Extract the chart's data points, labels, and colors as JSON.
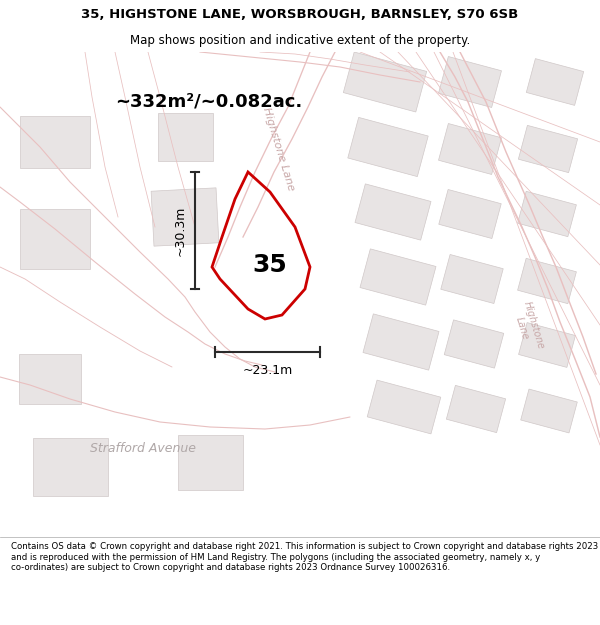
{
  "title_line1": "35, HIGHSTONE LANE, WORSBROUGH, BARNSLEY, S70 6SB",
  "title_line2": "Map shows position and indicative extent of the property.",
  "area_text": "~332m²/~0.082ac.",
  "width_label": "~23.1m",
  "height_label": "~30.3m",
  "number_label": "35",
  "footer_text": "Contains OS data © Crown copyright and database right 2021. This information is subject to Crown copyright and database rights 2023 and is reproduced with the permission of HM Land Registry. The polygons (including the associated geometry, namely x, y co-ordinates) are subject to Crown copyright and database rights 2023 Ordnance Survey 100026316.",
  "map_bg": "#f7f5f5",
  "plot_color": "#cc0000",
  "plot_lw": 2.0,
  "dim_color": "#2a2a2a",
  "road_color": "#e8c0c0",
  "road_lw": 0.8,
  "building_color": "#e8e4e4",
  "building_edge": "#d0c8c8",
  "building_lw": 0.5,
  "strafford_color": "#b0a8a8",
  "road_label_color": "#c8a8a8",
  "title_fontsize": 9.5,
  "subtitle_fontsize": 8.5,
  "area_fontsize": 13,
  "dim_fontsize": 9,
  "number_fontsize": 18,
  "strafford_fontsize": 9,
  "road_label_fontsize": 8
}
